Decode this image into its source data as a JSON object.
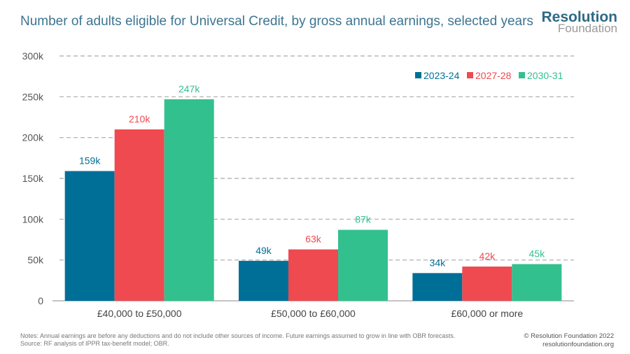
{
  "title": "Number of adults eligible for Universal Credit, by gross annual earnings, selected years",
  "logo": {
    "line1": "Resolution",
    "line2": "Foundation"
  },
  "notes": [
    "Notes: Annual earnings are before any deductions and do not include other sources of income. Future earnings assumed to grow in line with OBR forecasts.",
    "Source: RF analysis of IPPR tax-benefit model; OBR."
  ],
  "copyright": [
    "© Resolution Foundation 2022",
    "resolutionfoundation.org"
  ],
  "chart_data": {
    "type": "bar",
    "title": "Number of adults eligible for Universal Credit, by gross annual earnings, selected years",
    "categories": [
      "£40,000 to £50,000",
      "£50,000 to £60,000",
      "£60,000 or more"
    ],
    "series": [
      {
        "name": "2023-24",
        "values": [
          159,
          49,
          34
        ],
        "labels": [
          "159k",
          "49k",
          "34k"
        ],
        "color": "#006f98"
      },
      {
        "name": "2027-28",
        "values": [
          210,
          63,
          42
        ],
        "labels": [
          "210k",
          "63k",
          "42k"
        ],
        "color": "#ee4a4f"
      },
      {
        "name": "2030-31",
        "values": [
          247,
          87,
          45
        ],
        "labels": [
          "247k",
          "87k",
          "45k"
        ],
        "color": "#33c08f"
      }
    ],
    "yticks": [
      0,
      50,
      100,
      150,
      200,
      250,
      300
    ],
    "ytick_labels": [
      "0",
      "50k",
      "100k",
      "150k",
      "200k",
      "250k",
      "300k"
    ],
    "ylim": [
      0,
      300
    ],
    "grid": true,
    "legend": "top-right"
  }
}
